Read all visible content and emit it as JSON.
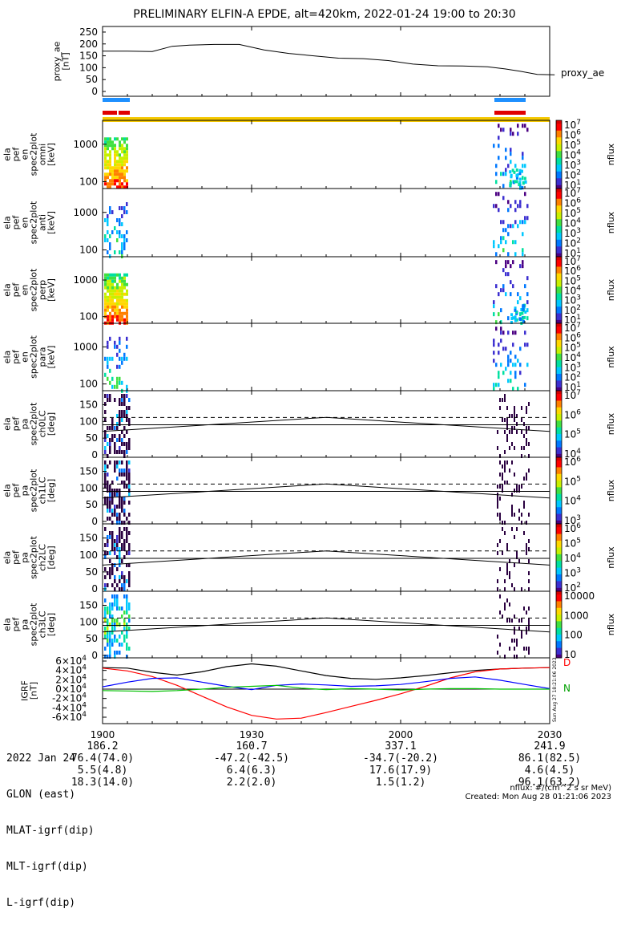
{
  "chart_data": {
    "title": "PRELIMINARY ELFIN-A EPDE, alt=420km, 2022-01-24 19:00 to 20:30",
    "x_tick_labels": [
      "1900",
      "1930",
      "2000",
      "2030"
    ],
    "panels": [
      {
        "id": "proxy_ae",
        "type": "line",
        "ylabel": [
          "proxy_ae",
          "[nT]"
        ],
        "yticks": [
          "250",
          "200",
          "150",
          "100",
          "50",
          "0"
        ],
        "ylim": [
          0,
          260
        ],
        "legend": "proxy_ae",
        "x_minutes": [
          0,
          10,
          20,
          28,
          35,
          45,
          55,
          65,
          75,
          85,
          95,
          105,
          115,
          125,
          135,
          145,
          155,
          162,
          168,
          175,
          182
        ],
        "values": [
          170,
          170,
          168,
          190,
          195,
          198,
          198,
          175,
          160,
          150,
          140,
          138,
          130,
          115,
          108,
          107,
          104,
          95,
          85,
          72,
          70
        ]
      },
      {
        "id": "spec_omni",
        "type": "heatmap",
        "ylabel": [
          "ela",
          "pef",
          "en",
          "spec2plot",
          "omni",
          "[keV]"
        ],
        "yticks": [
          "1000",
          "100"
        ],
        "colorbar": {
          "label": "nflux",
          "ticks": [
            "10",
            "10",
            "10",
            "10",
            "10",
            "10",
            "10"
          ],
          "exps": [
            "7",
            "6",
            "5",
            "4",
            "3",
            "2",
            "1"
          ]
        }
      },
      {
        "id": "spec_anti",
        "type": "heatmap",
        "ylabel": [
          "ela",
          "pef",
          "en",
          "spec2plot",
          "anti",
          "[keV]"
        ],
        "yticks": [
          "1000",
          "100"
        ],
        "colorbar": {
          "label": "nflux",
          "ticks": [
            "10",
            "10",
            "10",
            "10",
            "10",
            "10",
            "10"
          ],
          "exps": [
            "7",
            "6",
            "5",
            "4",
            "3",
            "2",
            "1"
          ]
        }
      },
      {
        "id": "spec_perp",
        "type": "heatmap",
        "ylabel": [
          "ela",
          "pef",
          "en",
          "spec2plot",
          "perp",
          "[keV]"
        ],
        "yticks": [
          "1000",
          "100"
        ],
        "colorbar": {
          "label": "nflux",
          "ticks": [
            "10",
            "10",
            "10",
            "10",
            "10",
            "10",
            "10"
          ],
          "exps": [
            "7",
            "6",
            "5",
            "4",
            "3",
            "2",
            "1"
          ]
        }
      },
      {
        "id": "spec_para",
        "type": "heatmap",
        "ylabel": [
          "ela",
          "pef",
          "en",
          "spec2plot",
          "para",
          "[keV]"
        ],
        "yticks": [
          "1000",
          "100"
        ],
        "colorbar": {
          "label": "nflux",
          "ticks": [
            "10",
            "10",
            "10",
            "10",
            "10",
            "10",
            "10"
          ],
          "exps": [
            "7",
            "6",
            "5",
            "4",
            "3",
            "2",
            "1"
          ]
        }
      },
      {
        "id": "pa_ch0",
        "type": "heatmap",
        "ylabel": [
          "ela",
          "pef",
          "pa",
          "spec2plot",
          "ch0LC",
          "[deg]"
        ],
        "yticks": [
          "150",
          "100",
          "50",
          "0"
        ],
        "colorbar": {
          "label": "nflux",
          "ticks": [
            "10",
            "10",
            "10",
            "10"
          ],
          "exps": [
            "7",
            "6",
            "5",
            "4"
          ]
        }
      },
      {
        "id": "pa_ch1",
        "type": "heatmap",
        "ylabel": [
          "ela",
          "pef",
          "pa",
          "spec2plot",
          "ch1LC",
          "[deg]"
        ],
        "yticks": [
          "150",
          "100",
          "50",
          "0"
        ],
        "colorbar": {
          "label": "nflux",
          "ticks": [
            "10",
            "10",
            "10",
            "10"
          ],
          "exps": [
            "6",
            "5",
            "4",
            "3"
          ]
        }
      },
      {
        "id": "pa_ch2",
        "type": "heatmap",
        "ylabel": [
          "ela",
          "pef",
          "pa",
          "spec2plot",
          "ch2LC",
          "[deg]"
        ],
        "yticks": [
          "150",
          "100",
          "50",
          "0"
        ],
        "colorbar": {
          "label": "nflux",
          "ticks": [
            "10",
            "10",
            "10",
            "10",
            "10"
          ],
          "exps": [
            "6",
            "5",
            "4",
            "3",
            "2"
          ]
        }
      },
      {
        "id": "pa_ch3",
        "type": "heatmap",
        "ylabel": [
          "ela",
          "pef",
          "pa",
          "spec2plot",
          "ch3LC",
          "[deg]"
        ],
        "yticks": [
          "150",
          "100",
          "50",
          "0"
        ],
        "colorbar": {
          "label": "nflux",
          "ticks": [
            "10000",
            "1000",
            "100",
            "10"
          ],
          "exps": [
            "",
            "",
            "",
            ""
          ]
        }
      },
      {
        "id": "igrf",
        "type": "line",
        "ylabel": [
          "IGRF",
          "[nT]"
        ],
        "yticks": [
          "6",
          "4",
          "2",
          "0",
          "-2",
          "-4",
          "-6"
        ],
        "ytick_exp": "4",
        "ytick_base": "×10",
        "legend": [
          "D",
          "N"
        ],
        "side_text": "Sun Aug 27 18:21:06 2023",
        "series": [
          {
            "color": "#000000",
            "x_minutes": [
              0,
              10,
              20,
              30,
              40,
              50,
              60,
              70,
              80,
              90,
              100,
              110,
              120,
              130,
              140,
              150,
              160,
              170,
              180
            ],
            "values": [
              4.6,
              4.5,
              3.6,
              3.0,
              3.7,
              4.8,
              5.4,
              4.9,
              3.9,
              2.9,
              2.3,
              2.1,
              2.4,
              2.9,
              3.5,
              4.0,
              4.3,
              4.5,
              4.6
            ]
          },
          {
            "color": "#ff0000",
            "x_minutes": [
              0,
              10,
              20,
              30,
              40,
              50,
              60,
              70,
              80,
              90,
              100,
              110,
              120,
              130,
              140,
              150,
              160,
              170,
              180
            ],
            "values": [
              4.5,
              3.9,
              2.7,
              0.8,
              -1.5,
              -3.8,
              -5.6,
              -6.4,
              -6.2,
              -5.0,
              -3.7,
              -2.4,
              -1.0,
              0.6,
              2.4,
              3.7,
              4.3,
              4.5,
              4.6
            ]
          },
          {
            "color": "#0000ff",
            "x_minutes": [
              0,
              10,
              20,
              30,
              40,
              50,
              60,
              70,
              80,
              90,
              100,
              110,
              120,
              130,
              140,
              150,
              160,
              170,
              180
            ],
            "values": [
              0.5,
              1.5,
              2.3,
              2.4,
              1.5,
              0.6,
              -0.1,
              0.8,
              1.1,
              0.9,
              0.6,
              0.7,
              1.0,
              1.6,
              2.3,
              2.6,
              1.9,
              1.0,
              0.1
            ]
          },
          {
            "color": "#00c000",
            "x_minutes": [
              0,
              10,
              20,
              30,
              40,
              50,
              60,
              70,
              80,
              90,
              100,
              110,
              120,
              130,
              140,
              150,
              160,
              170,
              180
            ],
            "values": [
              -0.3,
              -0.4,
              -0.5,
              -0.3,
              0.0,
              0.4,
              0.6,
              0.8,
              0.2,
              -0.1,
              0.1,
              0.0,
              -0.2,
              0.0,
              0.1,
              0.1,
              0.0,
              0.0,
              0.0
            ]
          }
        ]
      }
    ]
  },
  "footer": {
    "rows": [
      {
        "label": "2022 Jan 24 ",
        "values": [
          "1900",
          "1930",
          "2000",
          "2030"
        ]
      },
      {
        "label": "GLON (east)",
        "values": [
          "186.2",
          "160.7",
          "337.1",
          "241.9"
        ]
      },
      {
        "label": "MLAT-igrf(dip)",
        "values": [
          "76.4(74.0)",
          "-47.2(-42.5)",
          "-34.7(-20.2)",
          "86.1(82.5)"
        ]
      },
      {
        "label": "MLT-igrf(dip)",
        "values": [
          "5.5(4.8)",
          "6.4(6.3)",
          "17.6(17.9)",
          "4.6(4.5)"
        ]
      },
      {
        "label": "L-igrf(dip)",
        "values": [
          "18.3(14.0)",
          "2.2(2.0)",
          "1.5(1.2)",
          "96.1(63.2)"
        ]
      }
    ],
    "units": "nflux: #/(cm^2 s sr MeV)",
    "created": "Created: Mon Aug 28 01:21:06 2023"
  }
}
